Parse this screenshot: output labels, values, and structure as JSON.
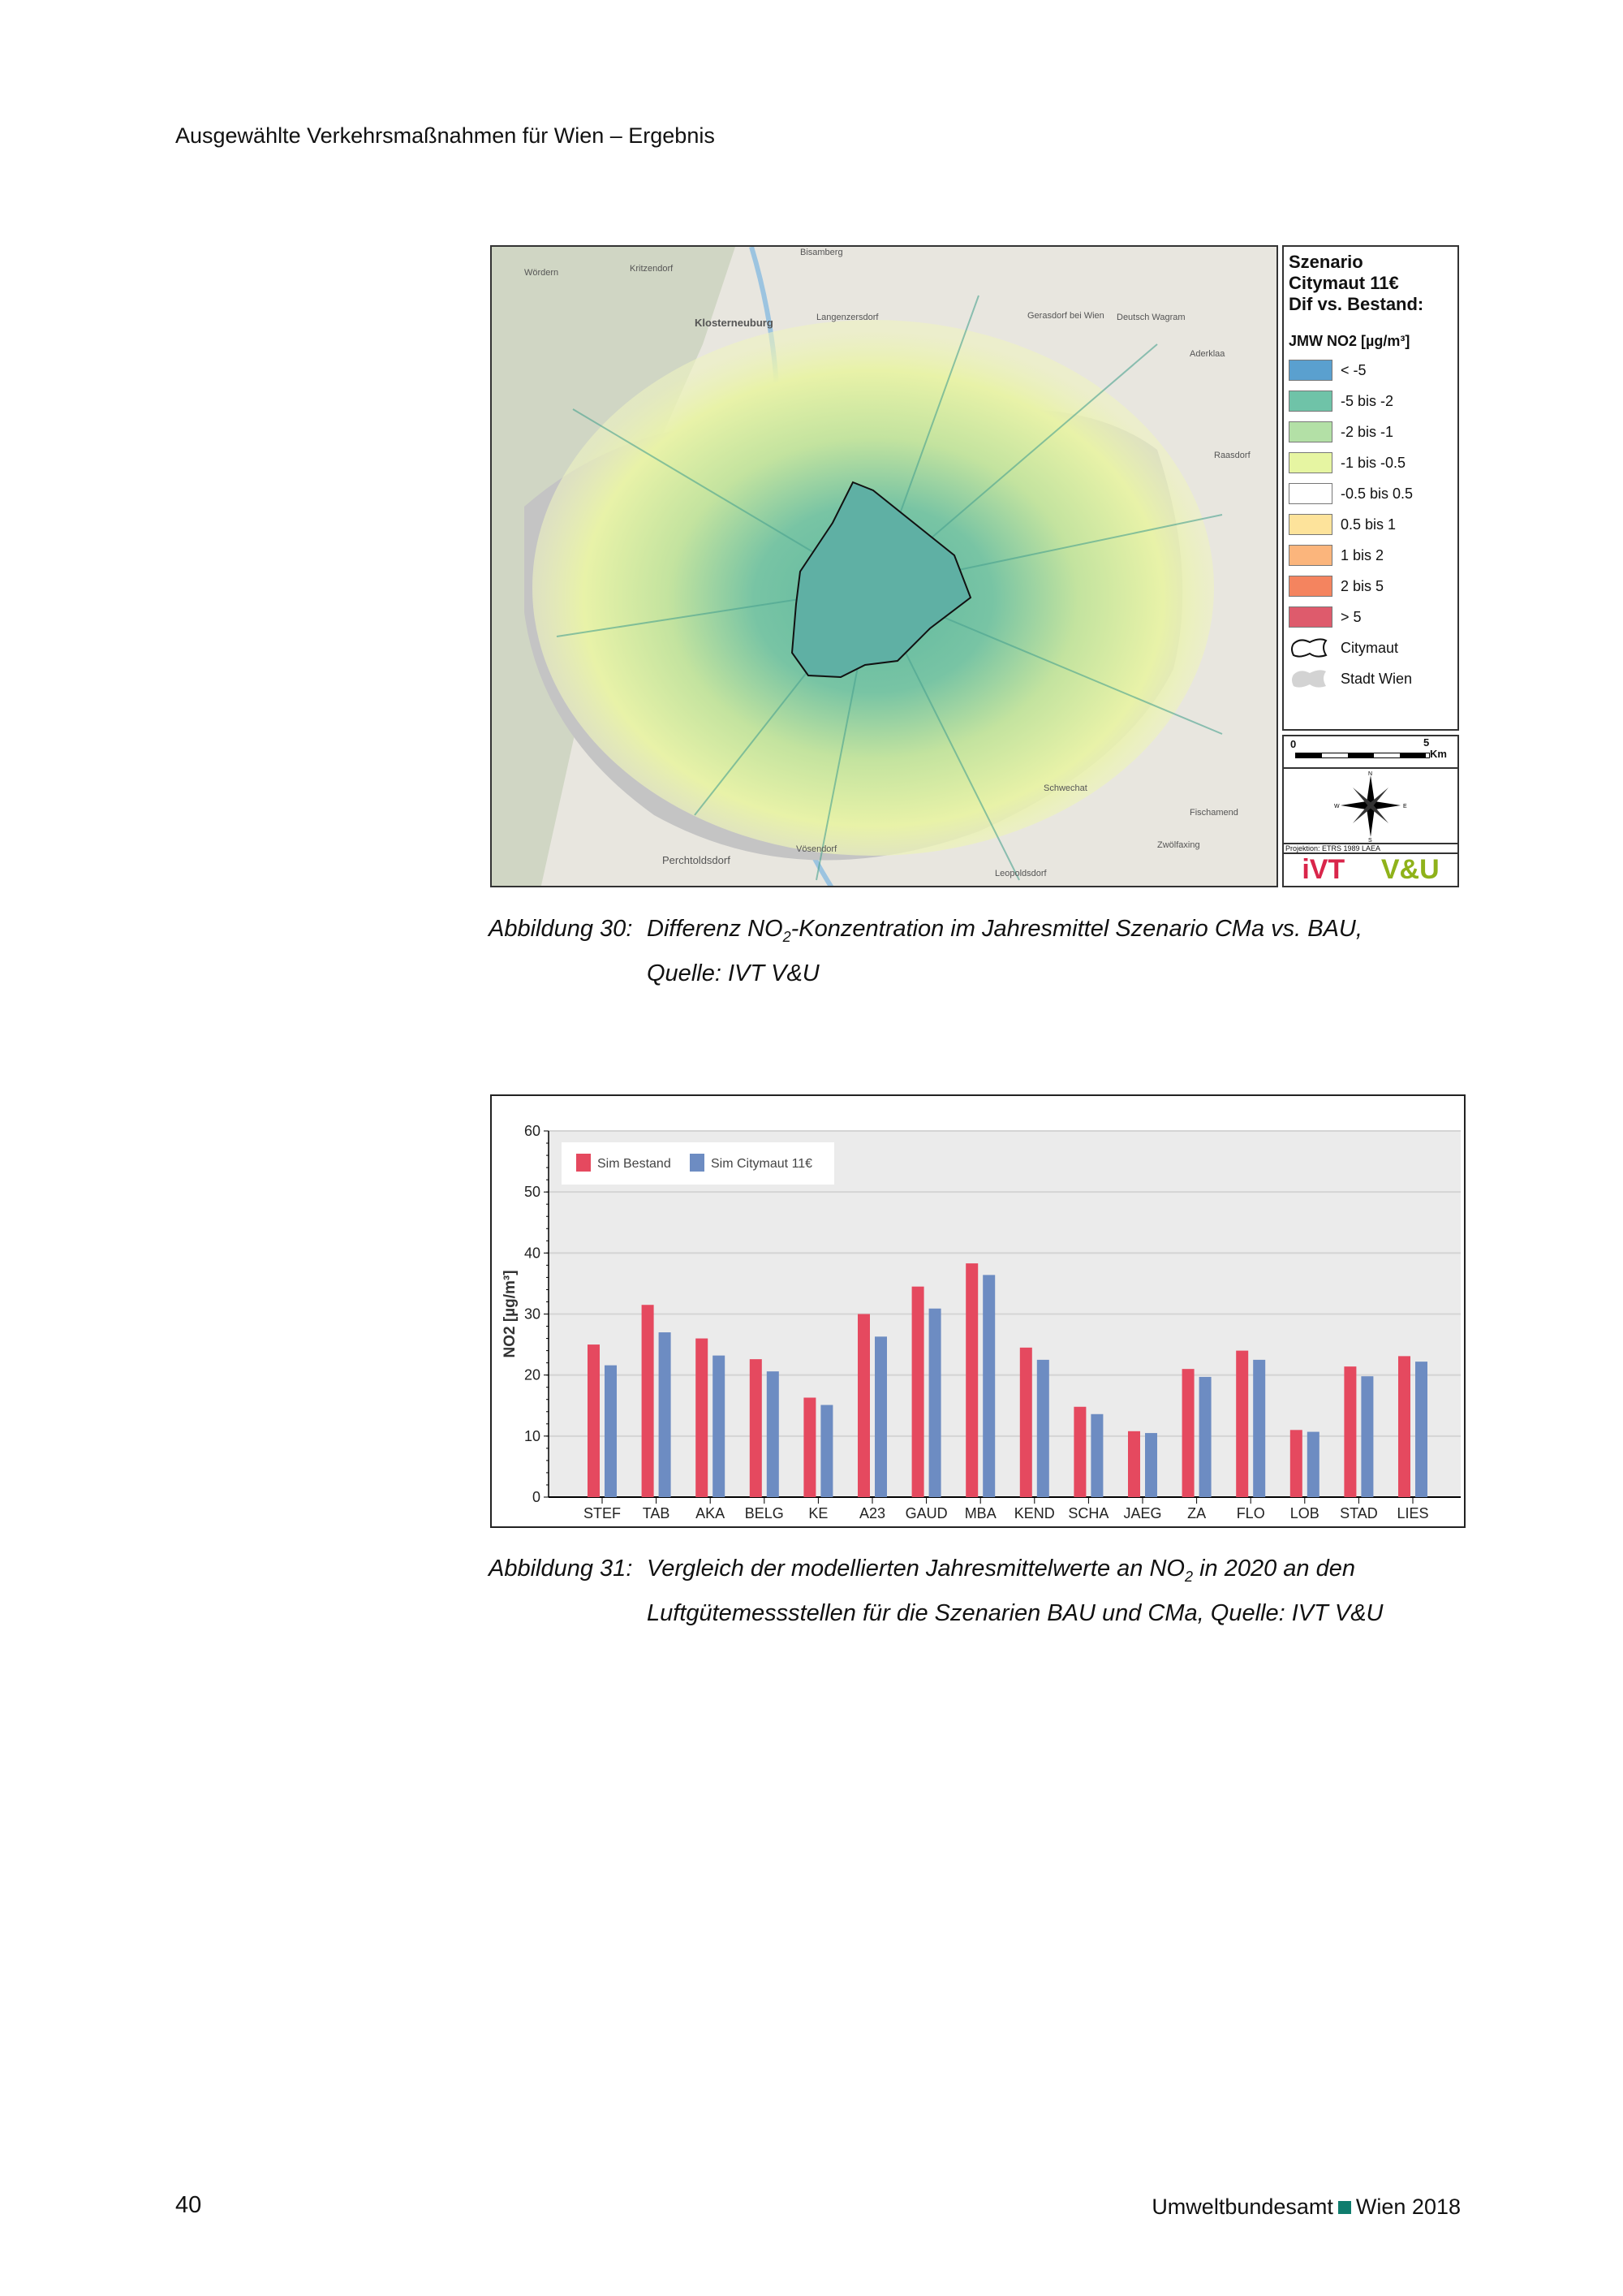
{
  "header": {
    "title": "Ausgewählte Verkehrsmaßnahmen für Wien – Ergebnis"
  },
  "map": {
    "place_labels": [
      "Klosterneuburg",
      "Langenzersdorf",
      "Gerasdorf bei Wien",
      "Deutsch Wagram",
      "Schwechat",
      "Perchtoldsdorf",
      "Vösendorf",
      "Wördern",
      "Kritzendorf",
      "Bisamberg",
      "Aderklaa",
      "Raasdorf",
      "Fischamend",
      "Leopoldsdorf",
      "Zwölfaxing"
    ],
    "legend": {
      "title_lines": [
        "Szenario",
        "Citymaut 11€",
        "Dif vs. Bestand:"
      ],
      "subtitle": "JMW NO2 [µg/m³]",
      "classes": [
        {
          "label": "< -5",
          "color": "#5aa0cf"
        },
        {
          "label": "-5 bis -2",
          "color": "#6fc3a8"
        },
        {
          "label": "-2 bis -1",
          "color": "#b3e0a6"
        },
        {
          "label": "-1 bis -0.5",
          "color": "#e6f5a2"
        },
        {
          "label": "-0.5 bis 0.5",
          "color": "#ffffff"
        },
        {
          "label": "0.5 bis 1",
          "color": "#fde39b"
        },
        {
          "label": "1 bis 2",
          "color": "#fbb57c"
        },
        {
          "label": "2 bis 5",
          "color": "#f4845f"
        },
        {
          "label": "> 5",
          "color": "#de5b6c"
        }
      ],
      "citymaut_label": "Citymaut",
      "stadt_label": "Stadt Wien"
    },
    "scale": {
      "start": "0",
      "end": "5",
      "unit": "Km"
    },
    "compass": {
      "n": "N",
      "s": "S",
      "e": "E",
      "w": "W"
    },
    "projection": "Projektion: ETRS 1989 LAEA",
    "logos": {
      "ivt": "iVT",
      "vu": "V&U"
    }
  },
  "caption30": {
    "label": "Abbildung 30:",
    "line1": "Differenz NO",
    "sub": "2",
    "line1b": "-Konzentration im Jahresmittel Szenario CMa vs. BAU,",
    "line2": "Quelle: IVT V&U"
  },
  "chart_data": {
    "type": "bar",
    "title": "",
    "xlabel": "",
    "ylabel": "NO2 [µg/m³]",
    "ylim": [
      0,
      60
    ],
    "yticks": [
      "0",
      "10",
      "20",
      "30",
      "40",
      "50",
      "60"
    ],
    "grid": true,
    "legend_position": "top-left",
    "categories": [
      "STEF",
      "TAB",
      "AKA",
      "BELG",
      "KE",
      "A23",
      "GAUD",
      "MBA",
      "KEND",
      "SCHA",
      "JAEG",
      "ZA",
      "FLO",
      "LOB",
      "STAD",
      "LIES"
    ],
    "series": [
      {
        "name": "Sim Bestand",
        "color": "#e5495f",
        "values": [
          25.0,
          31.5,
          26.0,
          22.6,
          16.3,
          30.0,
          34.5,
          38.3,
          24.5,
          14.8,
          10.8,
          21.0,
          24.0,
          11.0,
          21.4,
          23.1
        ]
      },
      {
        "name": "Sim Citymaut 11€",
        "color": "#6d8cc2",
        "values": [
          21.6,
          27.0,
          23.2,
          20.6,
          15.1,
          26.3,
          30.9,
          36.4,
          22.5,
          13.6,
          10.5,
          19.7,
          22.5,
          10.7,
          19.8,
          22.2
        ]
      }
    ]
  },
  "caption31": {
    "label": "Abbildung 31:",
    "line1": "Vergleich der modellierten Jahresmittelwerte an NO",
    "sub": "2",
    "line1b": " in 2020 an den",
    "line2": "Luftgütemessstellen für die Szenarien BAU und CMa, Quelle: IVT V&U"
  },
  "footer": {
    "page": "40",
    "publisher": "Umweltbundesamt",
    "year": "Wien 2018"
  }
}
